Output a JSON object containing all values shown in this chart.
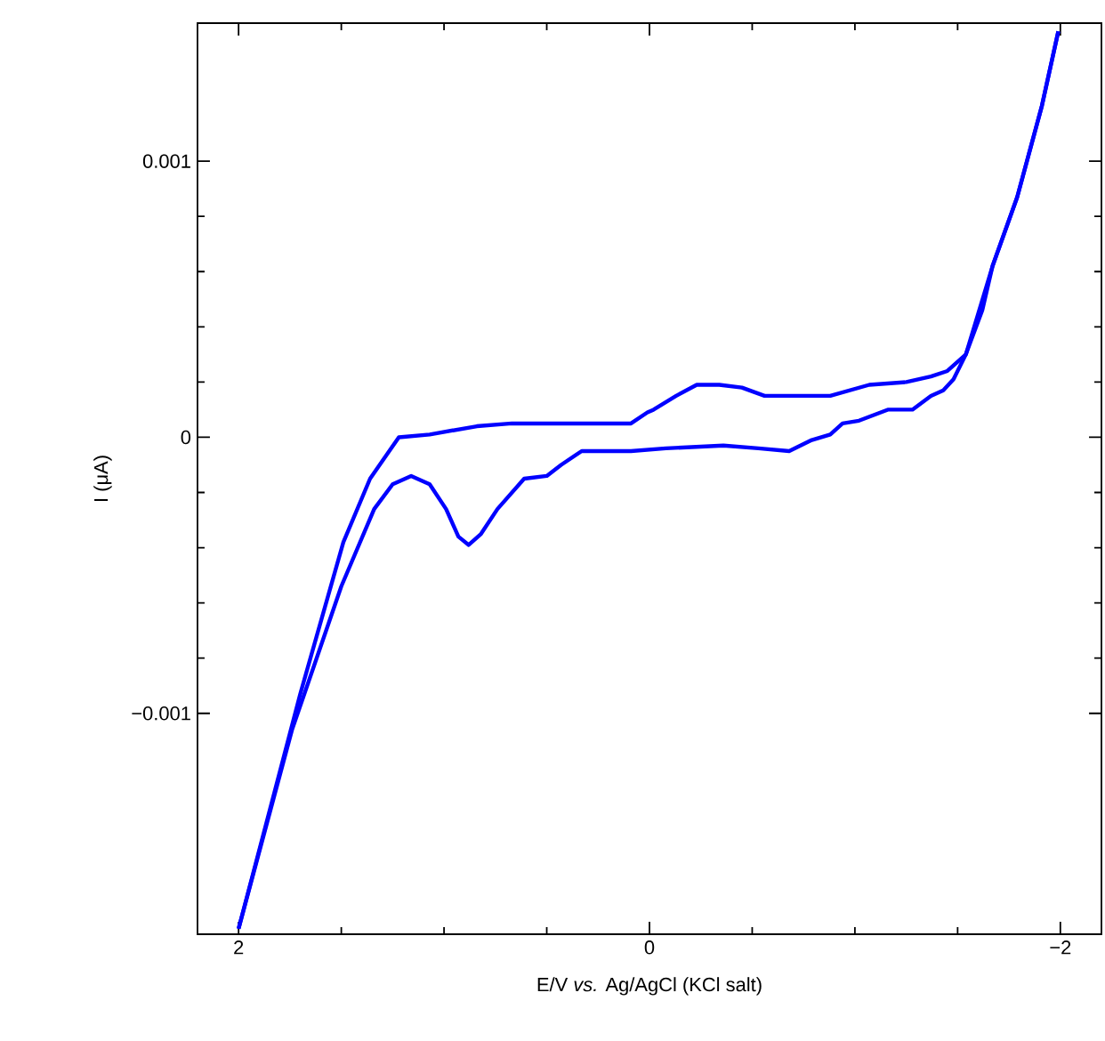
{
  "chart_data": {
    "type": "line",
    "xlabel": "E/V *vs.* Ag/AgCl (KCl salt)",
    "ylabel": "I (μA)",
    "xlim": [
      2.2,
      -2.2
    ],
    "ylim": [
      -0.0018,
      0.0015
    ],
    "xticks": [
      2,
      0,
      {
        "value": -2,
        "label": "−2"
      }
    ],
    "yticks": [
      {
        "value": -0.001,
        "label": "−0.001"
      },
      0,
      0.001
    ],
    "series": [
      {
        "color": "#0000ff",
        "x": [
          -1.99,
          -1.91,
          -1.79,
          -1.67,
          -1.54,
          -1.45,
          -1.37,
          -1.25,
          -1.07,
          -0.88,
          -0.56,
          -0.45,
          -0.34,
          -0.23,
          -0.13,
          -0.02,
          0.01,
          0.09,
          0.67,
          0.84,
          1.07,
          1.22,
          1.36,
          1.49,
          1.7,
          2.0
        ],
        "values": [
          0.00147,
          0.0012,
          0.00087,
          0.00062,
          0.0003,
          0.00024,
          0.00022,
          0.0002,
          0.00019,
          0.00015,
          0.00015,
          0.00018,
          0.00019,
          0.00019,
          0.00015,
          0.0001,
          9e-05,
          5e-05,
          5e-05,
          4e-05,
          1e-05,
          0,
          -0.00015,
          -0.00038,
          -0.00093,
          -0.00178
        ]
      },
      {
        "color": "#0000ff",
        "x": [
          2.0,
          1.74,
          1.5,
          1.34,
          1.25,
          1.16,
          1.07,
          0.99,
          0.93,
          0.88,
          0.82,
          0.74,
          0.61,
          0.5,
          0.43,
          0.33,
          0.22,
          0.09,
          -0.08,
          -0.36,
          -0.53,
          -0.68,
          -0.79,
          -0.88,
          -0.94,
          -1.02,
          -1.16,
          -1.28,
          -1.37,
          -1.43,
          -1.48,
          -1.54,
          -1.62,
          -1.67,
          -1.79,
          -1.91,
          -1.99
        ],
        "values": [
          -0.00178,
          -0.00106,
          -0.00054,
          -0.00026,
          -0.00017,
          -0.00014,
          -0.00017,
          -0.00026,
          -0.00036,
          -0.00039,
          -0.00035,
          -0.00026,
          -0.00015,
          -0.00014,
          -0.0001,
          -5e-05,
          -5e-05,
          -5e-05,
          -4e-05,
          -3e-05,
          -4e-05,
          -5e-05,
          -1e-05,
          1e-05,
          5e-05,
          6e-05,
          0.0001,
          0.0001,
          0.00015,
          0.00017,
          0.00021,
          0.0003,
          0.00046,
          0.00062,
          0.00087,
          0.0012,
          0.00147
        ]
      }
    ]
  }
}
